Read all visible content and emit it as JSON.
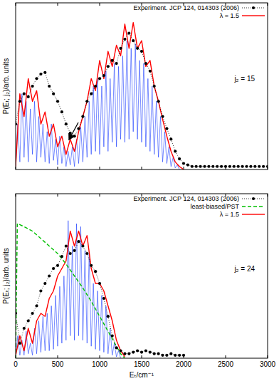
{
  "chart_data": [
    {
      "type": "line",
      "ylabel": "P(Eₜ; j₂)/arb. units",
      "annotations": [
        "j₂ = 15"
      ],
      "xlim": [
        0,
        3000
      ],
      "ylim": [
        0,
        1.1
      ],
      "xticks": [
        0,
        500,
        1000,
        1500,
        2000,
        2500,
        3000
      ],
      "grid": false,
      "legend": "upper right",
      "tick_labels": false,
      "series": [
        {
          "name": "Experiment. JCP 124, 014303 (2006)",
          "color": "#000000",
          "marker": "circle",
          "line_style": "dotted",
          "x": [
            0,
            50,
            100,
            150,
            200,
            250,
            300,
            350,
            400,
            450,
            500,
            550,
            600,
            650,
            700,
            750,
            800,
            850,
            900,
            950,
            1000,
            1050,
            1100,
            1150,
            1200,
            1250,
            1300,
            1350,
            1400,
            1450,
            1500,
            1550,
            1600,
            1650,
            1700,
            1750,
            1800,
            1850,
            1900,
            1950,
            2000,
            2050,
            2100,
            2150,
            2200,
            2250,
            2300,
            2350,
            2400,
            2450,
            2500,
            2550,
            2600,
            2650,
            2700,
            2750,
            2800,
            2850,
            2900,
            2950,
            3000
          ],
          "values": [
            0.3,
            0.45,
            0.5,
            0.48,
            0.55,
            0.6,
            0.63,
            0.64,
            0.55,
            0.5,
            0.45,
            0.38,
            0.3,
            0.24,
            0.22,
            0.27,
            0.35,
            0.45,
            0.5,
            0.55,
            0.6,
            0.62,
            0.68,
            0.72,
            0.7,
            0.8,
            0.86,
            0.9,
            0.85,
            0.8,
            0.78,
            0.7,
            0.65,
            0.55,
            0.45,
            0.35,
            0.27,
            0.2,
            0.12,
            0.07,
            0.04,
            0.03,
            0.02,
            0.02,
            0.02,
            0.02,
            0.02,
            0.02,
            0.02,
            0.02,
            0.02,
            0.02,
            0.02,
            0.02,
            0.02,
            0.02,
            0.02,
            0.02,
            0.02,
            0.02,
            0.02
          ]
        },
        {
          "name": "λ = 1.5",
          "color": "#ff0000",
          "line_style": "solid",
          "x": [
            0,
            50,
            100,
            150,
            200,
            250,
            300,
            350,
            400,
            450,
            500,
            550,
            600,
            650,
            700,
            750,
            800,
            850,
            900,
            950,
            1000,
            1050,
            1100,
            1150,
            1200,
            1250,
            1300,
            1350,
            1400,
            1450,
            1500,
            1550,
            1600,
            1650,
            1700,
            1750,
            1800,
            1850,
            1900,
            1950,
            2000
          ],
          "values": [
            0.02,
            0.5,
            0.35,
            0.6,
            0.45,
            0.52,
            0.3,
            0.38,
            0.22,
            0.3,
            0.15,
            0.22,
            0.1,
            0.2,
            0.12,
            0.25,
            0.35,
            0.45,
            0.6,
            0.52,
            0.72,
            0.6,
            0.78,
            0.68,
            0.82,
            0.75,
            0.96,
            0.8,
            0.97,
            0.8,
            0.85,
            0.68,
            0.72,
            0.55,
            0.45,
            0.33,
            0.22,
            0.12,
            0.05,
            0.02,
            0
          ]
        },
        {
          "color": "#1f3fff",
          "line_style": "solid",
          "x": [
            0,
            25,
            50,
            75,
            100,
            125,
            150,
            175,
            200,
            225,
            250,
            275,
            300,
            325,
            350,
            375,
            400,
            425,
            450,
            475,
            500,
            525,
            550,
            575,
            600,
            625,
            650,
            675,
            700,
            725,
            750,
            775,
            800,
            825,
            850,
            875,
            900,
            925,
            950,
            975,
            1000,
            1025,
            1050,
            1075,
            1100,
            1125,
            1150,
            1175,
            1200,
            1225,
            1250,
            1275,
            1300,
            1325,
            1350,
            1375,
            1400,
            1425,
            1450,
            1475,
            1500,
            1525,
            1550,
            1575,
            1600,
            1625,
            1650,
            1675,
            1700,
            1725,
            1750,
            1775,
            1800,
            1825,
            1850,
            1875,
            1900,
            1925,
            1950
          ],
          "values": [
            0.02,
            0.3,
            0.05,
            0.5,
            0.08,
            0.45,
            0.05,
            0.4,
            0.1,
            0.45,
            0.05,
            0.35,
            0.08,
            0.3,
            0.05,
            0.25,
            0.04,
            0.3,
            0.06,
            0.2,
            0.03,
            0.22,
            0.04,
            0.15,
            0.02,
            0.12,
            0.03,
            0.15,
            0.02,
            0.2,
            0.04,
            0.28,
            0.05,
            0.35,
            0.08,
            0.45,
            0.1,
            0.55,
            0.12,
            0.6,
            0.1,
            0.55,
            0.15,
            0.65,
            0.12,
            0.6,
            0.18,
            0.7,
            0.15,
            0.68,
            0.2,
            0.75,
            0.18,
            0.85,
            0.2,
            0.8,
            0.25,
            0.83,
            0.2,
            0.72,
            0.18,
            0.7,
            0.15,
            0.6,
            0.12,
            0.55,
            0.1,
            0.45,
            0.08,
            0.35,
            0.05,
            0.25,
            0.04,
            0.15,
            0.02,
            0.08,
            0.01,
            0.03,
            0
          ]
        }
      ]
    },
    {
      "type": "line",
      "ylabel": "P(Eₜ; j₂)/arb. units",
      "xlabel": "Eₜ/cm⁻¹",
      "annotations": [
        "j₂ = 24"
      ],
      "xlim": [
        0,
        3000
      ],
      "ylim": [
        0,
        1.1
      ],
      "xticks": [
        0,
        500,
        1000,
        1500,
        2000,
        2500,
        3000
      ],
      "grid": false,
      "legend": "upper right",
      "tick_labels": "x",
      "series": [
        {
          "name": "Experiment. JCP 124, 014303 (2006)",
          "color": "#000000",
          "marker": "circle",
          "line_style": "dotted",
          "x": [
            0,
            50,
            100,
            150,
            200,
            250,
            300,
            350,
            400,
            450,
            500,
            550,
            600,
            650,
            700,
            750,
            800,
            850,
            900,
            950,
            1000,
            1050,
            1100,
            1150,
            1200,
            1250,
            1300,
            1350,
            1400,
            1450,
            1500,
            1550,
            1600,
            1650,
            1700,
            1750,
            1800,
            1850,
            1900,
            1950,
            2000
          ],
          "values": [
            0.3,
            0.1,
            0.2,
            0.25,
            0.3,
            0.35,
            0.45,
            0.5,
            0.55,
            0.6,
            0.62,
            0.68,
            0.75,
            0.7,
            0.72,
            0.78,
            0.75,
            0.7,
            0.62,
            0.58,
            0.5,
            0.4,
            0.28,
            0.15,
            0.07,
            0.05,
            0.03,
            0.03,
            0.04,
            0.05,
            0.04,
            0.05,
            0.04,
            0.03,
            0.03,
            0.02,
            0.02,
            0.03,
            0.02,
            0.02,
            0.02
          ]
        },
        {
          "name": "least-biased/PST",
          "color": "#00c000",
          "line_style": "dashed",
          "x": [
            0,
            20,
            100,
            200,
            300,
            400,
            500,
            600,
            700,
            800,
            900,
            1000,
            1100,
            1200,
            1250,
            1300
          ],
          "values": [
            0,
            0.9,
            0.88,
            0.85,
            0.8,
            0.75,
            0.7,
            0.63,
            0.55,
            0.47,
            0.38,
            0.28,
            0.18,
            0.08,
            0.03,
            0
          ]
        },
        {
          "name": "λ = 1.5",
          "color": "#ff0000",
          "line_style": "solid",
          "x": [
            0,
            50,
            100,
            150,
            200,
            250,
            300,
            350,
            400,
            450,
            500,
            550,
            600,
            650,
            700,
            750,
            800,
            850,
            900,
            950,
            1000,
            1050,
            1100,
            1150,
            1200,
            1250,
            1300
          ],
          "values": [
            0.02,
            0.15,
            0.05,
            0.2,
            0.1,
            0.25,
            0.3,
            0.28,
            0.4,
            0.45,
            0.55,
            0.6,
            0.65,
            0.85,
            0.75,
            0.85,
            0.75,
            0.82,
            0.6,
            0.5,
            0.5,
            0.45,
            0.35,
            0.25,
            0.12,
            0.05,
            0.01
          ]
        },
        {
          "color": "#1f3fff",
          "line_style": "solid",
          "x": [
            0,
            25,
            50,
            75,
            100,
            125,
            150,
            175,
            200,
            225,
            250,
            275,
            300,
            325,
            350,
            375,
            400,
            425,
            450,
            475,
            500,
            525,
            550,
            575,
            600,
            625,
            650,
            675,
            700,
            725,
            750,
            775,
            800,
            825,
            850,
            875,
            900,
            925,
            950,
            975,
            1000,
            1025,
            1050,
            1075,
            1100,
            1125,
            1150,
            1175,
            1200,
            1225,
            1250
          ],
          "values": [
            0,
            0.15,
            0.02,
            0.12,
            0.02,
            0.18,
            0.03,
            0.1,
            0.02,
            0.2,
            0.03,
            0.25,
            0.04,
            0.28,
            0.05,
            0.3,
            0.05,
            0.35,
            0.06,
            0.42,
            0.08,
            0.48,
            0.1,
            0.55,
            0.12,
            0.92,
            0.15,
            0.75,
            0.12,
            0.9,
            0.15,
            0.88,
            0.12,
            0.72,
            0.1,
            0.7,
            0.08,
            0.5,
            0.06,
            0.45,
            0.05,
            0.42,
            0.04,
            0.35,
            0.03,
            0.2,
            0.02,
            0.1,
            0.01,
            0.05,
            0
          ]
        }
      ]
    }
  ]
}
